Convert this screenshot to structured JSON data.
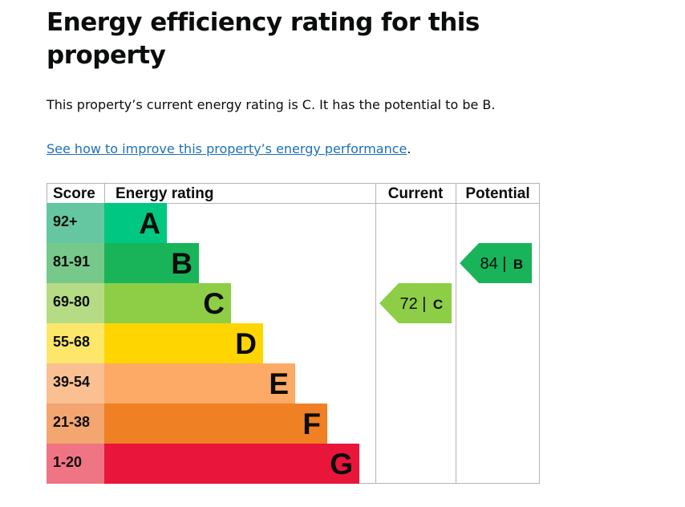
{
  "page": {
    "title": "Energy efficiency rating for this property",
    "summary": "This property’s current energy rating is C. It has the potential to be B.",
    "link_text": "See how to improve this property’s energy performance",
    "link_suffix": "."
  },
  "chart_data": {
    "type": "table",
    "headers": {
      "score": "Score",
      "rating": "Energy rating",
      "current": "Current",
      "potential": "Potential"
    },
    "bands": [
      {
        "score": "92+",
        "letter": "A",
        "score_color": "#65c7a2",
        "bar_color": "#00c781"
      },
      {
        "score": "81-91",
        "letter": "B",
        "score_color": "#76c98b",
        "bar_color": "#19b459"
      },
      {
        "score": "69-80",
        "letter": "C",
        "score_color": "#b5dc85",
        "bar_color": "#8dce46"
      },
      {
        "score": "55-68",
        "letter": "D",
        "score_color": "#fde76b",
        "bar_color": "#ffd500"
      },
      {
        "score": "39-54",
        "letter": "E",
        "score_color": "#fbc092",
        "bar_color": "#fcaa65"
      },
      {
        "score": "21-38",
        "letter": "F",
        "score_color": "#f3a66f",
        "bar_color": "#ef8023"
      },
      {
        "score": "1-20",
        "letter": "G",
        "score_color": "#ef7484",
        "bar_color": "#e9153b"
      }
    ],
    "current": {
      "value": "72",
      "band": "C"
    },
    "potential": {
      "value": "84",
      "band": "B"
    }
  }
}
